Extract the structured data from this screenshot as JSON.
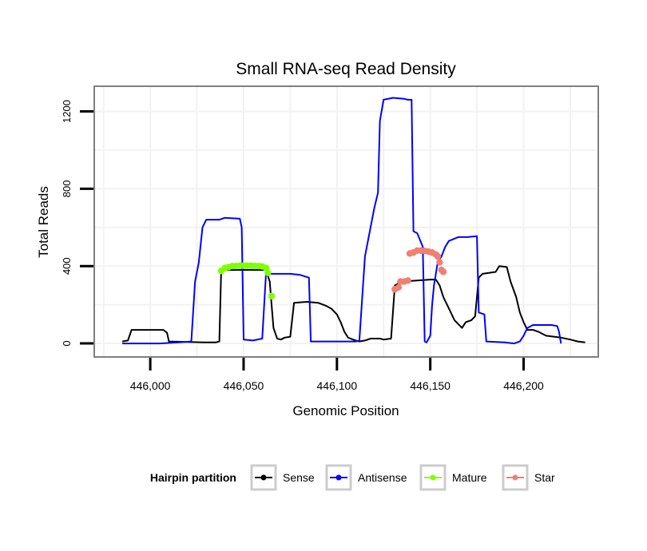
{
  "chart_data": {
    "type": "line",
    "title": "Small RNA-seq Read Density",
    "xlabel": "Genomic Position",
    "ylabel": "Total Reads",
    "xlim": [
      445970,
      446240
    ],
    "ylim": [
      -70,
      1330
    ],
    "x_ticks": [
      446000,
      446050,
      446100,
      446150,
      446200
    ],
    "x_tick_labels": [
      "446,000",
      "446,050",
      "446,100",
      "446,150",
      "446,200"
    ],
    "y_ticks": [
      0,
      400,
      800,
      1200
    ],
    "y_tick_labels": [
      "0",
      "400",
      "800",
      "1200"
    ],
    "grid": true,
    "legend": {
      "title": "Hairpin partition",
      "position": "bottom",
      "entries": [
        {
          "label": "Sense",
          "color": "#000000"
        },
        {
          "label": "Antisense",
          "color": "#0000ff"
        },
        {
          "label": "Mature",
          "color": "#7fff00"
        },
        {
          "label": "Star",
          "color": "#f08070"
        }
      ]
    },
    "series": [
      {
        "name": "Sense",
        "color": "#000000",
        "style": "line",
        "points": [
          [
            445985,
            10
          ],
          [
            445988,
            15
          ],
          [
            445990,
            70
          ],
          [
            446007,
            70
          ],
          [
            446009,
            55
          ],
          [
            446010,
            10
          ],
          [
            446030,
            5
          ],
          [
            446035,
            5
          ],
          [
            446037,
            10
          ],
          [
            446038,
            375
          ],
          [
            446039,
            380
          ],
          [
            446062,
            380
          ],
          [
            446064,
            320
          ],
          [
            446065,
            200
          ],
          [
            446066,
            80
          ],
          [
            446068,
            25
          ],
          [
            446070,
            20
          ],
          [
            446072,
            30
          ],
          [
            446075,
            35
          ],
          [
            446077,
            210
          ],
          [
            446084,
            215
          ],
          [
            446090,
            210
          ],
          [
            446094,
            195
          ],
          [
            446097,
            180
          ],
          [
            446100,
            150
          ],
          [
            446102,
            110
          ],
          [
            446104,
            60
          ],
          [
            446106,
            30
          ],
          [
            446110,
            15
          ],
          [
            446112,
            10
          ],
          [
            446115,
            15
          ],
          [
            446118,
            25
          ],
          [
            446123,
            25
          ],
          [
            446125,
            20
          ],
          [
            446129,
            25
          ],
          [
            446131,
            300
          ],
          [
            446135,
            320
          ],
          [
            446150,
            330
          ],
          [
            446153,
            330
          ],
          [
            446155,
            300
          ],
          [
            446157,
            240
          ],
          [
            446159,
            200
          ],
          [
            446161,
            160
          ],
          [
            446163,
            120
          ],
          [
            446165,
            100
          ],
          [
            446167,
            80
          ],
          [
            446169,
            110
          ],
          [
            446172,
            120
          ],
          [
            446174,
            140
          ],
          [
            446176,
            340
          ],
          [
            446178,
            360
          ],
          [
            446185,
            370
          ],
          [
            446187,
            400
          ],
          [
            446191,
            395
          ],
          [
            446193,
            320
          ],
          [
            446196,
            240
          ],
          [
            446198,
            160
          ],
          [
            446200,
            110
          ],
          [
            446202,
            70
          ],
          [
            446205,
            70
          ],
          [
            446208,
            60
          ],
          [
            446212,
            40
          ],
          [
            446220,
            30
          ],
          [
            446225,
            20
          ],
          [
            446229,
            10
          ],
          [
            446233,
            5
          ]
        ]
      },
      {
        "name": "Antisense",
        "color": "#0000ff",
        "style": "line",
        "points": [
          [
            445985,
            0
          ],
          [
            446005,
            0
          ],
          [
            446015,
            5
          ],
          [
            446022,
            10
          ],
          [
            446024,
            320
          ],
          [
            446026,
            420
          ],
          [
            446028,
            600
          ],
          [
            446030,
            640
          ],
          [
            446037,
            640
          ],
          [
            446040,
            650
          ],
          [
            446048,
            645
          ],
          [
            446049,
            600
          ],
          [
            446050,
            20
          ],
          [
            446055,
            15
          ],
          [
            446060,
            25
          ],
          [
            446062,
            360
          ],
          [
            446075,
            360
          ],
          [
            446080,
            355
          ],
          [
            446085,
            340
          ],
          [
            446086,
            10
          ],
          [
            446110,
            10
          ],
          [
            446112,
            15
          ],
          [
            446115,
            450
          ],
          [
            446118,
            600
          ],
          [
            446120,
            700
          ],
          [
            446122,
            780
          ],
          [
            446123,
            1150
          ],
          [
            446125,
            1260
          ],
          [
            446130,
            1270
          ],
          [
            446136,
            1265
          ],
          [
            446138,
            1260
          ],
          [
            446140,
            1260
          ],
          [
            446141,
            580
          ],
          [
            446143,
            570
          ],
          [
            446146,
            500
          ],
          [
            446147,
            10
          ],
          [
            446148,
            5
          ],
          [
            446150,
            40
          ],
          [
            446151,
            200
          ],
          [
            446152,
            300
          ],
          [
            446154,
            420
          ],
          [
            446156,
            450
          ],
          [
            446158,
            500
          ],
          [
            446160,
            530
          ],
          [
            446165,
            550
          ],
          [
            446170,
            550
          ],
          [
            446175,
            555
          ],
          [
            446176,
            160
          ],
          [
            446179,
            150
          ],
          [
            446180,
            10
          ],
          [
            446190,
            5
          ],
          [
            446195,
            0
          ],
          [
            446198,
            10
          ],
          [
            446200,
            40
          ],
          [
            446202,
            80
          ],
          [
            446205,
            95
          ],
          [
            446215,
            95
          ],
          [
            446218,
            90
          ],
          [
            446219,
            60
          ],
          [
            446220,
            0
          ]
        ]
      },
      {
        "name": "Mature",
        "color": "#7fff00",
        "style": "points",
        "points": [
          [
            446038,
            375
          ],
          [
            446040,
            390
          ],
          [
            446042,
            395
          ],
          [
            446044,
            400
          ],
          [
            446046,
            400
          ],
          [
            446048,
            402
          ],
          [
            446050,
            402
          ],
          [
            446052,
            402
          ],
          [
            446054,
            402
          ],
          [
            446056,
            400
          ],
          [
            446058,
            400
          ],
          [
            446060,
            398
          ],
          [
            446062,
            390
          ],
          [
            446063,
            365
          ],
          [
            446065,
            245
          ]
        ]
      },
      {
        "name": "Star",
        "color": "#f08070",
        "style": "points",
        "points": [
          [
            446131,
            280
          ],
          [
            446133,
            290
          ],
          [
            446134,
            320
          ],
          [
            446136,
            320
          ],
          [
            446138,
            325
          ],
          [
            446139,
            465
          ],
          [
            446141,
            470
          ],
          [
            446143,
            480
          ],
          [
            446145,
            480
          ],
          [
            446147,
            478
          ],
          [
            446149,
            475
          ],
          [
            446151,
            470
          ],
          [
            446153,
            460
          ],
          [
            446154,
            450
          ],
          [
            446155,
            420
          ],
          [
            446156,
            380
          ],
          [
            446157,
            370
          ]
        ]
      }
    ]
  }
}
